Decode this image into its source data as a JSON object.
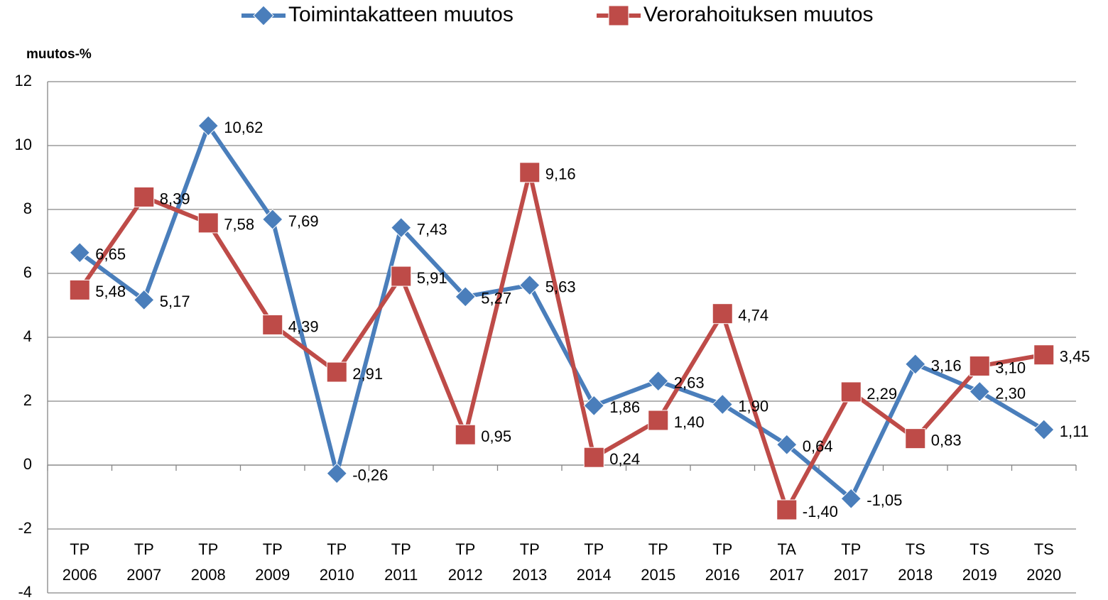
{
  "chart_data": {
    "type": "line",
    "y_label": "muutos-%",
    "categories": [
      "TP 2006",
      "TP 2007",
      "TP 2008",
      "TP 2009",
      "TP 2010",
      "TP 2011",
      "TP 2012",
      "TP 2013",
      "TP 2014",
      "TP 2015",
      "TP 2016",
      "TA 2017",
      "TP 2017",
      "TS 2018",
      "TS 2019",
      "TS 2020"
    ],
    "series": [
      {
        "name": "Toimintakatteen muutos",
        "color": "#4a7ebb",
        "marker": "diamond",
        "values": [
          6.65,
          5.17,
          10.62,
          7.69,
          -0.26,
          7.43,
          5.27,
          5.63,
          1.86,
          2.63,
          1.9,
          0.64,
          -1.05,
          3.16,
          2.3,
          1.11
        ],
        "value_labels": [
          "6,65",
          "5,17",
          "10,62",
          "7,69",
          "-0,26",
          "7,43",
          "5,27",
          "5,63",
          "1,86",
          "2,63",
          "1,90",
          "0,64",
          "-1,05",
          "3,16",
          "2,30",
          "1,11"
        ]
      },
      {
        "name": "Verorahoituksen muutos",
        "color": "#be4b48",
        "marker": "square",
        "values": [
          5.48,
          8.39,
          7.58,
          4.39,
          2.91,
          5.91,
          0.95,
          9.16,
          0.24,
          1.4,
          4.74,
          -1.4,
          2.29,
          0.83,
          3.1,
          3.45
        ],
        "value_labels": [
          "5,48",
          "8,39",
          "7,58",
          "4,39",
          "2,91",
          "5,91",
          "0,95",
          "9,16",
          "0,24",
          "1,40",
          "4,74",
          "-1,40",
          "2,29",
          "0,83",
          "3,10",
          "3,45"
        ]
      }
    ],
    "ylim": [
      -4,
      12
    ],
    "yticks": [
      -4,
      -2,
      0,
      2,
      4,
      6,
      8,
      10,
      12
    ],
    "grid": true,
    "legend": "top"
  }
}
